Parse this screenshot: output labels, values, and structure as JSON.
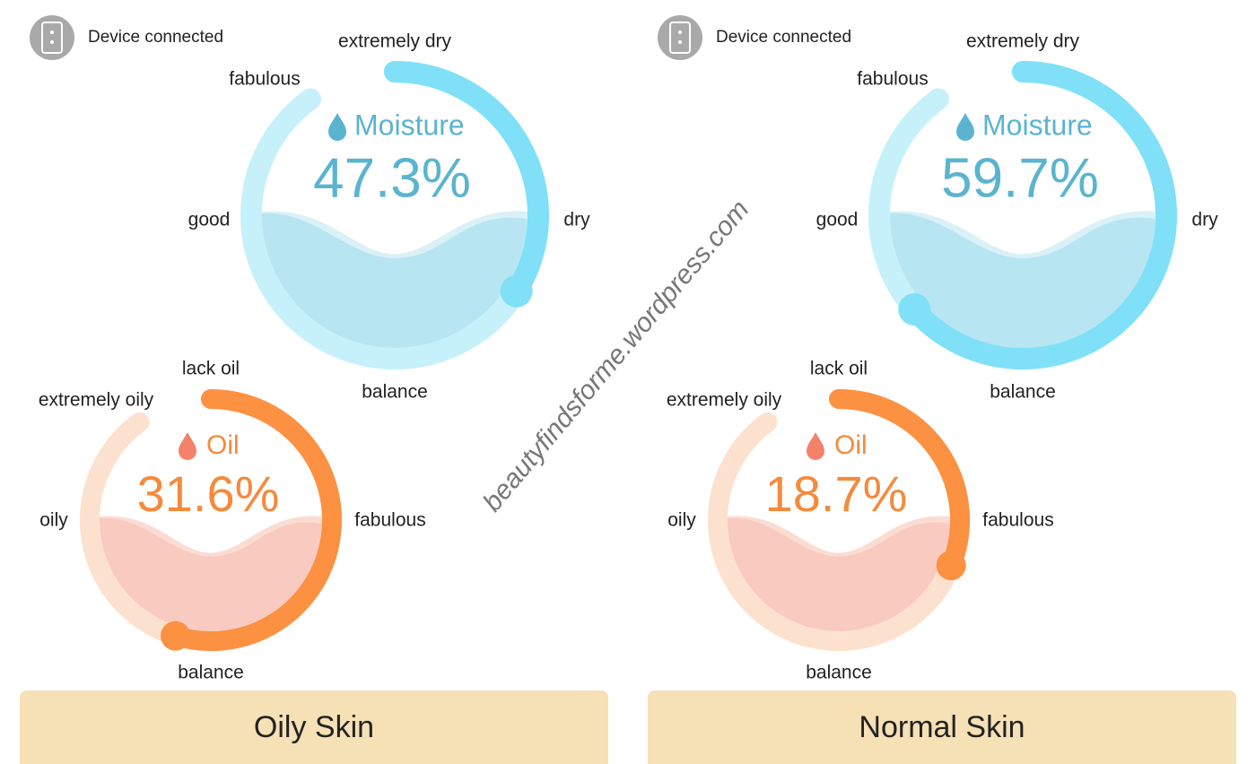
{
  "panels": [
    {
      "status": "Device connected",
      "moisture": {
        "title": "Moisture",
        "value": "47.3%",
        "labels": {
          "top": "extremely dry",
          "top_left": "fabulous",
          "left": "good",
          "right": "dry",
          "bottom": "balance"
        }
      },
      "oil": {
        "title": "Oil",
        "value": "31.6%",
        "labels": {
          "top": "lack oil",
          "top_left": "extremely oily",
          "left": "oily",
          "right": "fabulous",
          "bottom": "balance"
        }
      },
      "skin_type": "Oily Skin"
    },
    {
      "status": "Device connected",
      "moisture": {
        "title": "Moisture",
        "value": "59.7%",
        "labels": {
          "top": "extremely dry",
          "top_left": "fabulous",
          "left": "good",
          "right": "dry",
          "bottom": "balance"
        }
      },
      "oil": {
        "title": "Oil",
        "value": "18.7%",
        "labels": {
          "top": "lack oil",
          "top_left": "extremely oily",
          "left": "oily",
          "right": "fabulous",
          "bottom": "balance"
        }
      },
      "skin_type": "Normal Skin"
    }
  ],
  "watermark": "beautyfindsforme.wordpress.com"
}
